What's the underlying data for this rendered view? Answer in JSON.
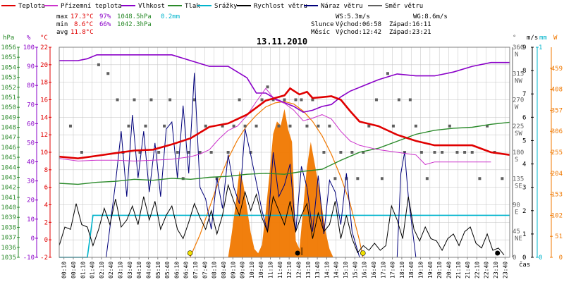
{
  "colors": {
    "temperature": "#e00000",
    "dew_point": "#cc33cc",
    "humidity": "#8a00c8",
    "pressure": "#2a8a2a",
    "precip": "#00b4cc",
    "wind_speed": "#000000",
    "gust": "#00007a",
    "direction": "#606060",
    "solar": "#f07800",
    "solar_fill": "#f07800",
    "grid": "#c0c0c0",
    "axis": "#808080"
  },
  "legend": [
    {
      "key": "temperature",
      "label": "Teplota"
    },
    {
      "key": "dew_point",
      "label": "Přízemní teplota"
    },
    {
      "key": "humidity",
      "label": "Vlhkost"
    },
    {
      "key": "pressure",
      "label": "Tlak"
    },
    {
      "key": "precip",
      "label": "Srážky"
    },
    {
      "key": "wind_speed",
      "label": "Rychlost větru"
    },
    {
      "key": "gust",
      "label": "Náraz větru"
    },
    {
      "key": "direction",
      "label": "Směr větru"
    }
  ],
  "stats": {
    "max_label": "max",
    "min_label": "min",
    "avg_label": "avg",
    "max_temp": "17.3°C",
    "max_hum": "97%",
    "max_press": "1048.5hPa",
    "max_precip": "0.2mm",
    "min_temp": "8.6°C",
    "min_hum": "66%",
    "min_press": "1042.3hPa",
    "avg_temp": "11.8°C"
  },
  "info": {
    "ws": "WS:5.3m/s",
    "wg": "WG:8.6m/s",
    "sun_label": "Slunce",
    "sunrise": "Východ:06:58",
    "sunset": "Západ:16:11",
    "moon_label": "Měsíc",
    "moonrise": "Východ:12:42",
    "moonset": "Západ:23:21"
  },
  "date": "13.11.2010",
  "time_label": "čas",
  "axis_units": {
    "hpa": "hPa",
    "pct": "%",
    "temp": "°C",
    "deg": "°",
    "ms": "m/s",
    "mm": "mm",
    "w": "W"
  },
  "chart_data": {
    "type": "line",
    "title": "13.11.2010",
    "x_ticks": [
      "00:10",
      "00:40",
      "01:10",
      "01:40",
      "02:10",
      "02:40",
      "03:10",
      "03:40",
      "04:10",
      "04:40",
      "05:10",
      "05:40",
      "06:10",
      "06:40",
      "07:10",
      "07:40",
      "08:10",
      "08:40",
      "09:10",
      "09:40",
      "10:10",
      "10:40",
      "11:10",
      "11:40",
      "12:10",
      "12:40",
      "13:10",
      "13:40",
      "14:10",
      "14:40",
      "15:10",
      "15:40",
      "16:10",
      "16:40",
      "17:10",
      "17:40",
      "18:10",
      "18:40",
      "19:10",
      "19:40",
      "20:10",
      "20:40",
      "21:10",
      "21:40",
      "22:10",
      "22:40",
      "23:10",
      "23:40"
    ],
    "xlim_hours": [
      0,
      24
    ],
    "axes": {
      "pressure_hpa": {
        "ylim": [
          1035,
          1056
        ],
        "ticks": [
          1035,
          1036,
          1037,
          1038,
          1039,
          1040,
          1041,
          1042,
          1043,
          1044,
          1045,
          1046,
          1047,
          1048,
          1049,
          1050,
          1051,
          1052,
          1053,
          1054,
          1055,
          1056
        ]
      },
      "humidity_pct": {
        "ylim": [
          -10,
          100
        ],
        "ticks": [
          -10,
          0,
          10,
          20,
          30,
          40,
          50,
          60,
          70,
          80,
          90,
          100
        ]
      },
      "temperature_c": {
        "ylim": [
          -2,
          22
        ],
        "ticks": [
          -2,
          0,
          2,
          4,
          6,
          8,
          10,
          12,
          14,
          16,
          18,
          20,
          22
        ]
      },
      "direction_deg": {
        "ylim": [
          0,
          360
        ],
        "ticks": [
          {
            "v": 360,
            "dir": "N"
          },
          {
            "v": 315,
            "dir": "NW"
          },
          {
            "v": 270,
            "dir": "W"
          },
          {
            "v": 225,
            "dir": "SW"
          },
          {
            "v": 180,
            "dir": "S"
          },
          {
            "v": 135,
            "dir": "SE"
          },
          {
            "v": 90,
            "dir": "E"
          },
          {
            "v": 45,
            "dir": "NE"
          },
          {
            "v": 0,
            "dir": ""
          }
        ]
      },
      "wind_ms": {
        "ylim": [
          0,
          9
        ],
        "ticks": [
          0,
          1,
          2,
          3,
          4,
          5,
          6,
          7,
          8,
          9
        ]
      },
      "precip_mm": {
        "ylim": [
          0,
          1
        ],
        "ticks": [
          0,
          1
        ]
      },
      "solar_w": {
        "ylim": [
          0,
          510
        ],
        "ticks": [
          0,
          51,
          102,
          153,
          204,
          255,
          306,
          357,
          408,
          459
        ]
      }
    },
    "series": [
      {
        "name": "Teplota",
        "axis": "temperature_c",
        "x": [
          0,
          1,
          2,
          3,
          4,
          5,
          6,
          7,
          8,
          8.5,
          9,
          10,
          10.5,
          11,
          11.5,
          12,
          12.3,
          12.8,
          13.2,
          13.5,
          14,
          14.5,
          15,
          15.5,
          16,
          17,
          17.5,
          18,
          19,
          20,
          21,
          22,
          23,
          24
        ],
        "y": [
          9.5,
          9.3,
          9.6,
          9.9,
          10.2,
          10.3,
          10.9,
          11.6,
          12.9,
          13.1,
          13.3,
          14.3,
          15.1,
          15.9,
          16.2,
          16.5,
          17.3,
          16.6,
          16.9,
          16.2,
          16.3,
          16.4,
          16.0,
          14.7,
          13.5,
          13.0,
          12.5,
          12.0,
          11.3,
          10.8,
          10.8,
          10.8,
          10.0,
          9.7
        ]
      },
      {
        "name": "Přízemní teplota",
        "axis": "temperature_c",
        "x": [
          0,
          1,
          2,
          3,
          4,
          5,
          6,
          7,
          7.5,
          8,
          8.5,
          9,
          9.5,
          10,
          10.5,
          11,
          11.5,
          12,
          12.5,
          13,
          13.5,
          14,
          14.5,
          15,
          15.5,
          16,
          17,
          18,
          19,
          19.5,
          20,
          21,
          22,
          23
        ],
        "y": [
          9.3,
          9.0,
          9.1,
          9.1,
          9.0,
          9.1,
          9.2,
          9.5,
          9.8,
          10.3,
          11.5,
          12.5,
          13.0,
          14.2,
          15.8,
          17.3,
          16.0,
          15.6,
          14.8,
          13.6,
          13.9,
          14.3,
          13.8,
          12.4,
          11.3,
          10.8,
          10.3,
          10.0,
          9.7,
          8.6,
          8.9,
          8.9,
          8.9,
          8.9
        ]
      },
      {
        "name": "Vlhkost",
        "axis": "humidity_pct",
        "x": [
          0,
          1,
          1.5,
          2,
          3,
          4,
          5,
          6,
          7,
          8,
          9,
          10,
          10.5,
          11,
          11.5,
          12,
          12.5,
          13,
          13.5,
          14,
          14.5,
          15,
          15.5,
          16,
          17,
          18,
          19,
          20,
          21,
          22,
          23,
          24
        ],
        "y": [
          93,
          93,
          94,
          96,
          96,
          96,
          96,
          96,
          93,
          90,
          90,
          84,
          76,
          76,
          73,
          71,
          69,
          66,
          67,
          69,
          70,
          74,
          77,
          79,
          83,
          86,
          85,
          85,
          87,
          90,
          92,
          92
        ]
      },
      {
        "name": "Tlak",
        "axis": "pressure_hpa",
        "x": [
          0,
          1,
          2,
          3,
          4,
          5,
          6,
          7,
          7.5,
          8,
          9,
          10,
          11,
          12,
          13,
          14,
          15,
          16,
          17,
          18,
          19,
          20,
          21,
          22,
          23,
          24
        ],
        "y": [
          1042.4,
          1042.3,
          1042.5,
          1042.6,
          1042.8,
          1042.7,
          1042.9,
          1042.8,
          1042.9,
          1043.0,
          1043.1,
          1043.3,
          1043.4,
          1043.3,
          1043.6,
          1043.8,
          1044.7,
          1045.5,
          1045.9,
          1046.6,
          1047.3,
          1047.7,
          1047.9,
          1048.0,
          1048.3,
          1048.5
        ]
      },
      {
        "name": "Srážky",
        "axis": "precip_mm",
        "x": [
          0,
          1.5,
          1.8,
          2,
          24
        ],
        "y": [
          0,
          0,
          0.2,
          0.2,
          0.2
        ],
        "step": true
      },
      {
        "name": "Rychlost větru",
        "axis": "wind_ms",
        "x": [
          0,
          0.3,
          0.6,
          0.9,
          1.2,
          1.5,
          1.8,
          2.1,
          2.4,
          2.7,
          3.0,
          3.3,
          3.6,
          3.9,
          4.2,
          4.5,
          4.8,
          5.1,
          5.4,
          5.7,
          6.0,
          6.3,
          6.6,
          6.9,
          7.2,
          7.5,
          7.8,
          8.1,
          8.4,
          8.7,
          9.0,
          9.3,
          9.6,
          9.9,
          10.2,
          10.5,
          10.8,
          11.1,
          11.4,
          11.7,
          12.0,
          12.3,
          12.6,
          12.9,
          13.2,
          13.5,
          13.8,
          14.1,
          14.4,
          14.7,
          15.0,
          15.3,
          15.6,
          15.9,
          16.2,
          16.5,
          16.8,
          17.1,
          17.4,
          17.7,
          18.0,
          18.3,
          18.6,
          18.9,
          19.2,
          19.5,
          19.8,
          20.1,
          20.4,
          20.7,
          21.0,
          21.3,
          21.6,
          21.9,
          22.2,
          22.5,
          22.8,
          23.1,
          23.4,
          23.7
        ],
        "y": [
          0.5,
          1.3,
          1.2,
          2.3,
          1.4,
          1.3,
          0.5,
          1.2,
          2.1,
          1.4,
          2.5,
          1.3,
          1.6,
          2.2,
          1.4,
          2.6,
          1.6,
          2.4,
          1.2,
          1.8,
          2.2,
          1.2,
          0.8,
          1.5,
          2.3,
          1.7,
          1.2,
          2.0,
          1.0,
          1.8,
          3.1,
          2.4,
          1.8,
          2.8,
          2.0,
          2.7,
          1.7,
          1.1,
          2.6,
          2.0,
          1.4,
          2.4,
          1.1,
          1.8,
          2.3,
          0.8,
          1.9,
          1.1,
          1.4,
          2.4,
          0.8,
          1.8,
          0.8,
          0.2,
          0.5,
          0.3,
          0.6,
          0.3,
          0.5,
          2.2,
          1.6,
          0.8,
          2.6,
          1.2,
          0.7,
          1.3,
          0.8,
          0.7,
          0.3,
          0.8,
          1.0,
          0.5,
          1.1,
          1.3,
          0.6,
          0.4,
          1.0,
          0.3,
          0.4,
          0.1
        ]
      },
      {
        "name": "Náraz větru",
        "axis": "wind_ms",
        "x": [
          0,
          0.5,
          1,
          1.5,
          2,
          2.5,
          3,
          3.3,
          3.6,
          3.9,
          4.2,
          4.5,
          4.8,
          5.1,
          5.4,
          5.7,
          6.0,
          6.3,
          6.6,
          6.9,
          7.2,
          7.5,
          7.8,
          8.1,
          8.4,
          8.7,
          9.0,
          9.3,
          9.6,
          9.9,
          10.2,
          10.5,
          10.8,
          11.1,
          11.4,
          11.7,
          12.0,
          12.3,
          12.6,
          12.9,
          13.2,
          13.5,
          13.8,
          14.1,
          14.4,
          14.7,
          15.0,
          15.3,
          15.6,
          16,
          17,
          18,
          18.2,
          18.4,
          18.6,
          19,
          20,
          21,
          22,
          23,
          23.5
        ],
        "y": [
          0,
          0,
          0,
          0,
          0,
          0,
          3.2,
          5.4,
          2.6,
          6.1,
          3.4,
          5.4,
          2.8,
          4.9,
          2.6,
          5.5,
          5.8,
          3.4,
          6.5,
          3.6,
          7.9,
          3.0,
          2.5,
          1.2,
          3.4,
          2.1,
          4.4,
          3.0,
          2.3,
          5.5,
          4.4,
          3.2,
          2.0,
          1.1,
          4.5,
          2.6,
          3.1,
          4.0,
          1.1,
          3.9,
          3.0,
          1.1,
          3.5,
          1.0,
          3.3,
          2.8,
          1.4,
          3.6,
          1.1,
          0,
          0,
          0,
          3.6,
          4.5,
          2.6,
          0,
          0,
          0,
          0,
          0,
          0
        ]
      },
      {
        "name": "Solar radiation",
        "axis": "solar_w",
        "x": [
          6.97,
          7.5,
          8,
          8.5,
          9,
          9.5,
          10,
          10.5,
          11,
          11.5,
          12,
          12.5,
          13,
          13.5,
          14,
          14.5,
          15,
          15.5,
          16,
          16.18
        ],
        "y": [
          0,
          55,
          120,
          185,
          240,
          285,
          320,
          345,
          365,
          375,
          378,
          372,
          355,
          330,
          295,
          250,
          195,
          130,
          40,
          0
        ]
      },
      {
        "name": "Solar measured",
        "axis": "solar_w",
        "x": [
          9,
          9.2,
          9.4,
          9.6,
          9.8,
          10,
          10.2,
          10.4,
          10.6,
          10.8,
          11,
          11.2,
          11.4,
          11.6,
          11.8,
          12,
          12.2,
          12.4,
          12.6,
          12.8,
          13,
          13.2,
          13.4,
          13.6,
          13.8,
          14,
          14.2,
          14.4,
          14.6
        ],
        "y": [
          0,
          60,
          130,
          210,
          180,
          120,
          60,
          20,
          10,
          30,
          110,
          200,
          300,
          330,
          320,
          360,
          310,
          280,
          40,
          20,
          120,
          220,
          280,
          230,
          180,
          120,
          60,
          20,
          0
        ]
      }
    ],
    "direction_points": {
      "axis": "direction_deg",
      "x": [
        0.6,
        1.2,
        2.1,
        2.6,
        3.1,
        3.4,
        3.7,
        4.0,
        4.3,
        4.6,
        4.9,
        5.3,
        5.6,
        5.9,
        6.3,
        6.6,
        6.9,
        7.2,
        7.5,
        7.8,
        8.1,
        8.4,
        8.7,
        9.0,
        9.3,
        9.6,
        9.9,
        10.2,
        10.5,
        10.8,
        11.1,
        11.4,
        11.7,
        12.0,
        12.3,
        12.6,
        12.9,
        13.2,
        13.5,
        13.8,
        14.1,
        14.4,
        14.7,
        15.0,
        15.3,
        15.6,
        15.9,
        16.2,
        16.5,
        16.9,
        17.2,
        17.5,
        17.8,
        18.1,
        18.4,
        18.7,
        19.0,
        19.3,
        19.6,
        20.0,
        20.4,
        20.8,
        21.2,
        21.6,
        22.0,
        22.4,
        22.8,
        23.2,
        23.6
      ],
      "y": [
        225,
        180,
        330,
        315,
        270,
        180,
        225,
        270,
        180,
        225,
        270,
        180,
        225,
        270,
        180,
        135,
        180,
        270,
        180,
        225,
        180,
        135,
        225,
        180,
        225,
        270,
        225,
        180,
        225,
        270,
        292,
        270,
        225,
        270,
        225,
        270,
        270,
        225,
        270,
        225,
        180,
        225,
        135,
        180,
        135,
        180,
        135,
        180,
        225,
        270,
        135,
        315,
        225,
        270,
        180,
        270,
        225,
        180,
        135,
        180,
        180,
        225,
        180,
        180,
        180,
        135,
        225,
        180,
        135
      ]
    },
    "sun_events": [
      {
        "time": 6.97,
        "kind": "sunrise"
      },
      {
        "time": 16.18,
        "kind": "sunset"
      },
      {
        "time": 12.7,
        "kind": "moonrise"
      },
      {
        "time": 23.35,
        "kind": "moonset"
      }
    ],
    "legend_placement": "top",
    "grid": true
  }
}
